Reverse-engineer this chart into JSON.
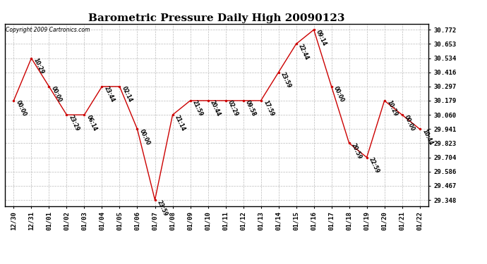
{
  "title": "Barometric Pressure Daily High 20090123",
  "copyright": "Copyright 2009 Cartronics.com",
  "x_labels": [
    "12/30",
    "12/31",
    "01/01",
    "01/02",
    "01/03",
    "01/04",
    "01/05",
    "01/06",
    "01/07",
    "01/08",
    "01/09",
    "01/10",
    "01/11",
    "01/12",
    "01/13",
    "01/14",
    "01/15",
    "01/16",
    "01/17",
    "01/18",
    "01/19",
    "01/20",
    "01/21",
    "01/22"
  ],
  "y_values": [
    30.179,
    30.534,
    30.297,
    30.06,
    30.06,
    30.297,
    30.297,
    29.941,
    29.348,
    30.06,
    30.179,
    30.179,
    30.179,
    30.179,
    30.179,
    30.416,
    30.653,
    30.772,
    30.297,
    29.823,
    29.704,
    30.179,
    30.06,
    29.941
  ],
  "time_labels": [
    "00:00",
    "10:29",
    "00:00",
    "23:29",
    "06:14",
    "23:44",
    "02:14",
    "00:00",
    "23:59",
    "21:14",
    "21:59",
    "20:44",
    "02:29",
    "09:58",
    "17:59",
    "23:59",
    "22:44",
    "09:14",
    "00:00",
    "20:59",
    "22:59",
    "10:29",
    "00:00",
    "10:44"
  ],
  "y_ticks": [
    29.348,
    29.467,
    29.586,
    29.704,
    29.823,
    29.941,
    30.06,
    30.179,
    30.297,
    30.416,
    30.534,
    30.653,
    30.772
  ],
  "line_color": "#cc0000",
  "marker_color": "#cc0000",
  "bg_color": "#ffffff",
  "grid_color": "#bbbbbb",
  "title_fontsize": 11,
  "tick_fontsize": 6.5,
  "label_fontsize": 5.5,
  "copyright_fontsize": 5.5
}
